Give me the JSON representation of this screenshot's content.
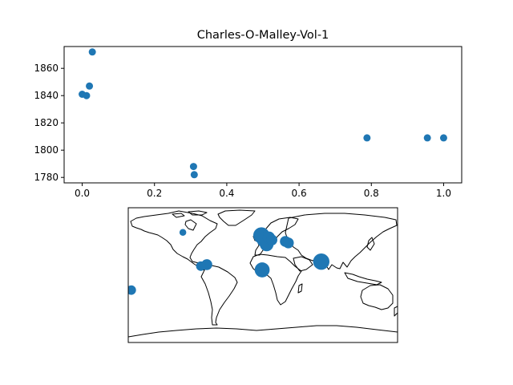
{
  "chart_data": [
    {
      "type": "scatter",
      "title": "Charles-O-Malley-Vol-1",
      "xlabel": "",
      "ylabel": "",
      "xlim": [
        -0.05,
        1.05
      ],
      "ylim": [
        1776,
        1876
      ],
      "xticks": [
        "0.0",
        "0.2",
        "0.4",
        "0.6",
        "0.8",
        "1.0"
      ],
      "yticks": [
        "1780",
        "1800",
        "1820",
        "1840",
        "1860"
      ],
      "grid": false,
      "color": "#1f77b4",
      "points": [
        {
          "x": 0.0,
          "y": 1841
        },
        {
          "x": 0.012,
          "y": 1840
        },
        {
          "x": 0.02,
          "y": 1847
        },
        {
          "x": 0.028,
          "y": 1872
        },
        {
          "x": 0.308,
          "y": 1788
        },
        {
          "x": 0.31,
          "y": 1782
        },
        {
          "x": 0.788,
          "y": 1809
        },
        {
          "x": 0.955,
          "y": 1809
        },
        {
          "x": 1.0,
          "y": 1809
        }
      ]
    },
    {
      "type": "map",
      "projection": "equirectangular",
      "lon_range": [
        -180,
        180
      ],
      "lat_range": [
        -90,
        90
      ],
      "color": "#1f77b4",
      "markers": [
        {
          "lon": -107,
          "lat": 57,
          "size": 5
        },
        {
          "lon": -75,
          "lat": 14,
          "size": 8
        },
        {
          "lon": -83,
          "lat": 12,
          "size": 7
        },
        {
          "lon": -176,
          "lat": -20,
          "size": 7
        },
        {
          "lon": -2,
          "lat": 53,
          "size": 12
        },
        {
          "lon": 2,
          "lat": 47,
          "size": 11
        },
        {
          "lon": 5,
          "lat": 41,
          "size": 10
        },
        {
          "lon": 8,
          "lat": 50,
          "size": 9
        },
        {
          "lon": 12,
          "lat": 47,
          "size": 8
        },
        {
          "lon": 30,
          "lat": 45,
          "size": 8
        },
        {
          "lon": 34,
          "lat": 43,
          "size": 8
        },
        {
          "lon": -1,
          "lat": 7,
          "size": 11
        },
        {
          "lon": 78,
          "lat": 18,
          "size": 12
        }
      ]
    }
  ]
}
